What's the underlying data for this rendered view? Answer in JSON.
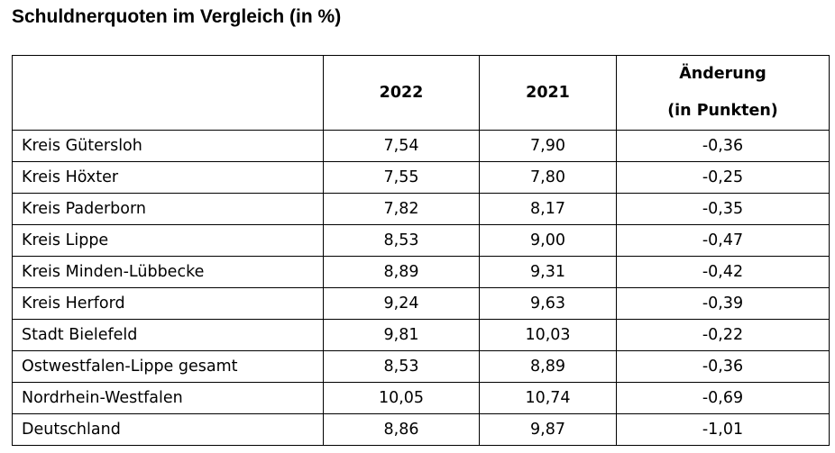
{
  "title": "Schuldnerquoten im Vergleich (in %)",
  "table": {
    "headers": [
      "",
      "2022",
      "2021",
      "Änderung",
      "(in Punkten)"
    ],
    "rows": [
      [
        "Kreis Gütersloh",
        "7,54",
        "7,90",
        "-0,36"
      ],
      [
        "Kreis Höxter",
        "7,55",
        "7,80",
        "-0,25"
      ],
      [
        "Kreis Paderborn",
        "7,82",
        "8,17",
        "-0,35"
      ],
      [
        "Kreis Lippe",
        "8,53",
        "9,00",
        "-0,47"
      ],
      [
        "Kreis Minden-Lübbecke",
        "8,89",
        "9,31",
        "-0,42"
      ],
      [
        "Kreis Herford",
        "9,24",
        "9,63",
        "-0,39"
      ],
      [
        "Stadt Bielefeld",
        "9,81",
        "10,03",
        "-0,22"
      ],
      [
        "Ostwestfalen-Lippe gesamt",
        "8,53",
        "8,89",
        "-0,36"
      ],
      [
        "Nordrhein-Westfalen",
        "10,05",
        "10,74",
        "-0,69"
      ],
      [
        "Deutschland",
        "8,86",
        "9,87",
        "-1,01"
      ]
    ]
  }
}
